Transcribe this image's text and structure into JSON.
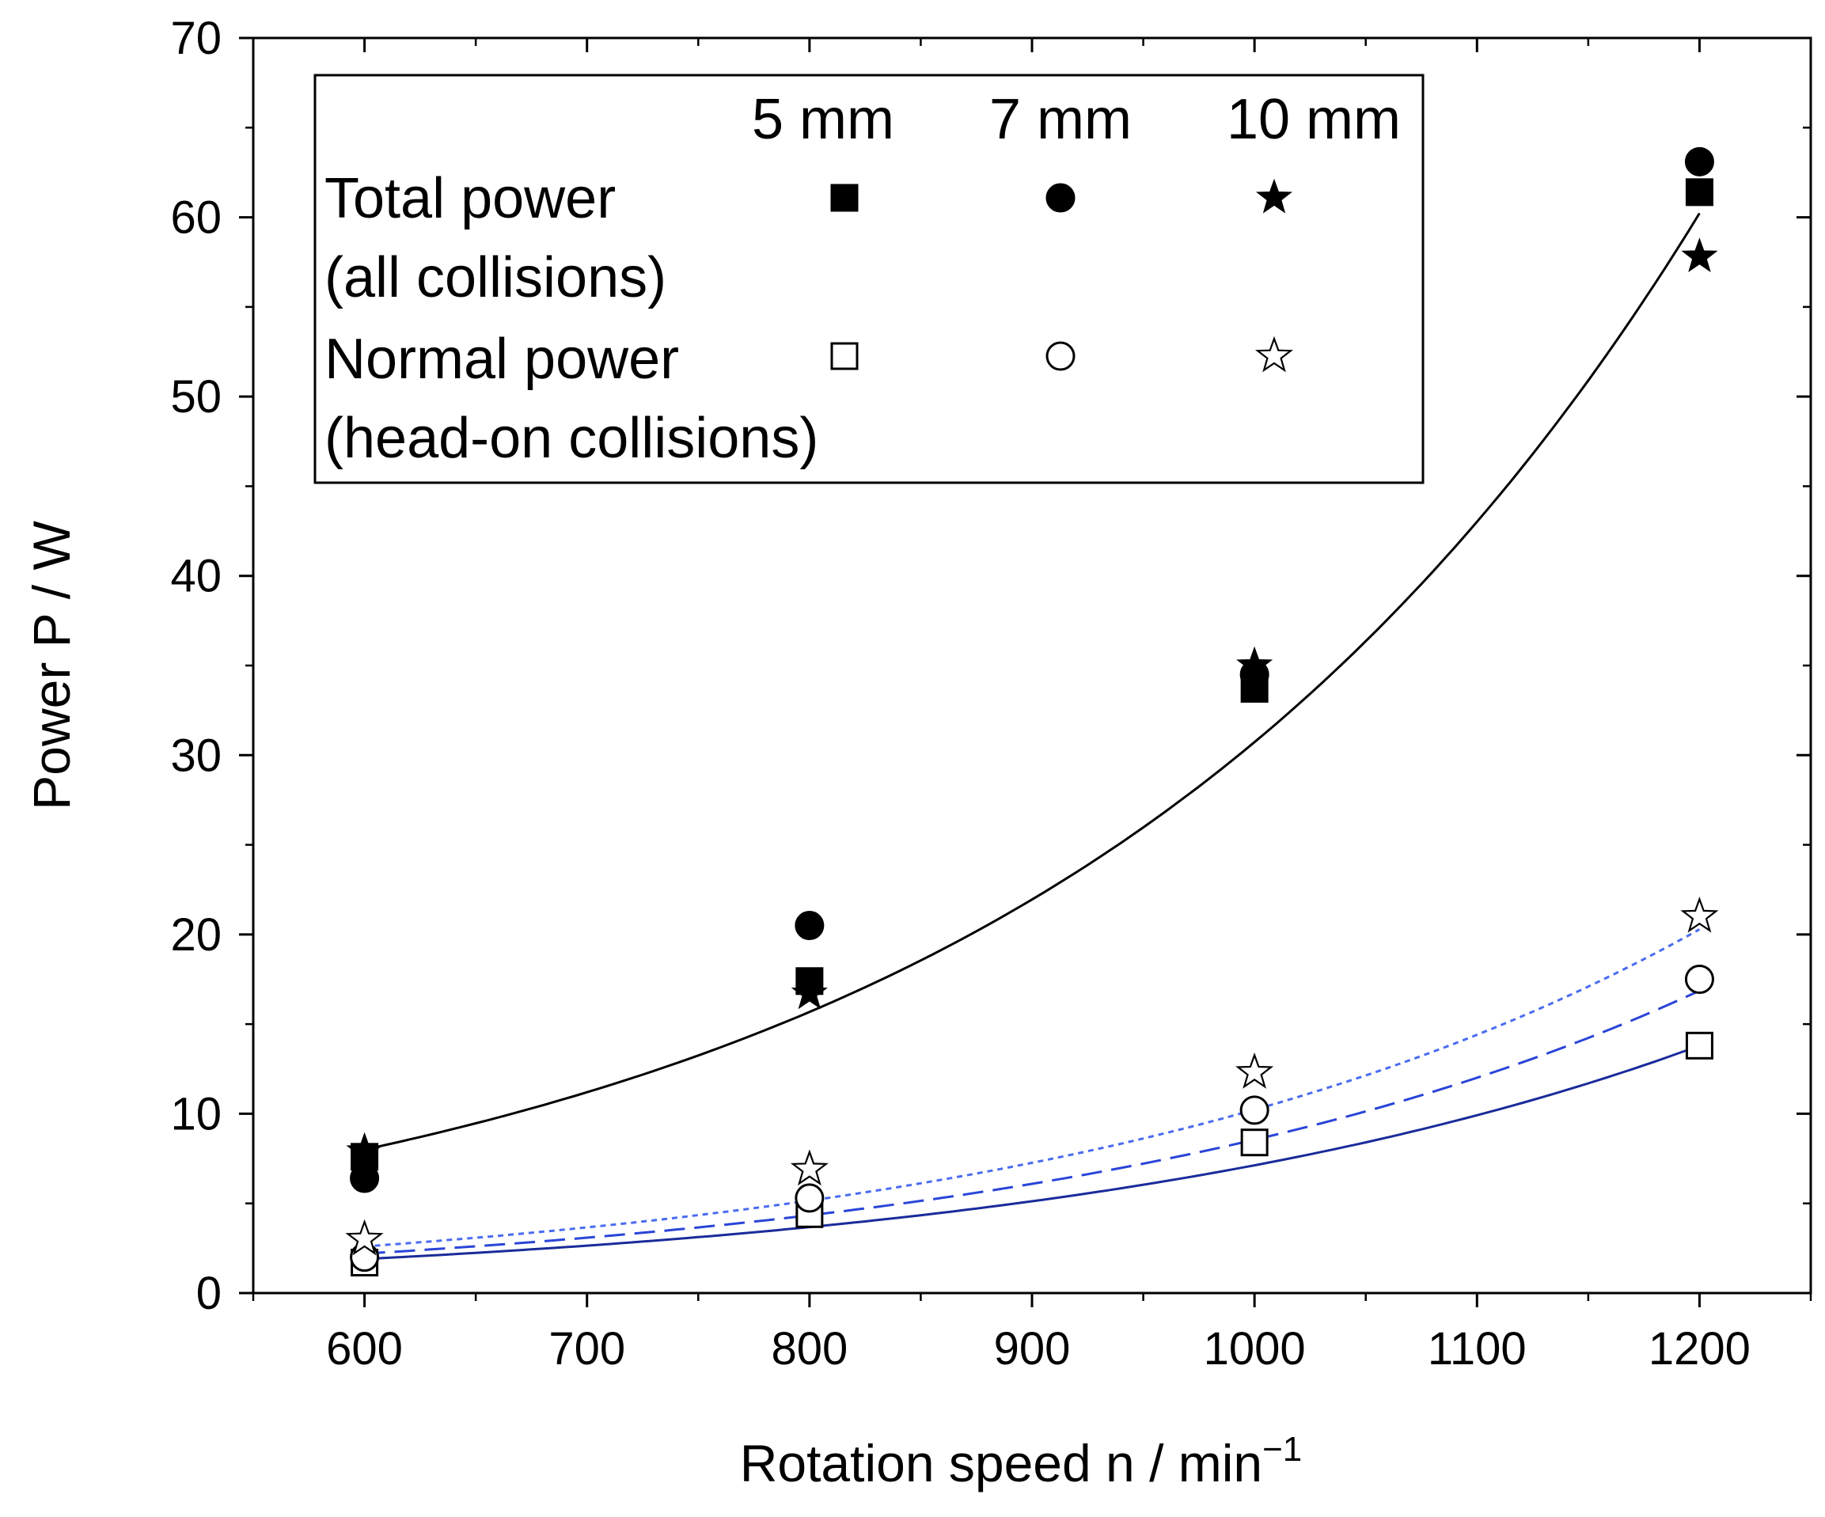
{
  "chart_data": {
    "type": "scatter",
    "title": "",
    "xlabel": "Rotation speed n / min",
    "xlabel_superscript": "−1",
    "ylabel": "Power P / W",
    "xlim": [
      550,
      1250
    ],
    "ylim": [
      0,
      70
    ],
    "x_ticks": [
      600,
      700,
      800,
      900,
      1000,
      1100,
      1200
    ],
    "y_ticks": [
      0,
      10,
      20,
      30,
      40,
      50,
      60,
      70
    ],
    "x_tick_labels": [
      "600",
      "700",
      "800",
      "900",
      "1000",
      "1100",
      "1200"
    ],
    "y_tick_labels": [
      "0",
      "10",
      "20",
      "30",
      "40",
      "50",
      "60",
      "70"
    ],
    "grid": false,
    "legend": {
      "position": "top-left",
      "columns": [
        "5 mm",
        "7 mm",
        "10 mm"
      ],
      "rows": [
        {
          "line1": "Total power",
          "line2": "(all collisions)",
          "markers": [
            "square-filled",
            "circle-filled",
            "star-filled"
          ]
        },
        {
          "line1": "Normal power",
          "line2": "(head-on collisions)",
          "markers": [
            "square-open",
            "circle-open",
            "star-open"
          ]
        }
      ]
    },
    "series": [
      {
        "name": "Total power 5 mm",
        "marker": "square-filled",
        "x": [
          600,
          800,
          1000,
          1200
        ],
        "y": [
          7.6,
          17.4,
          33.7,
          61.4
        ]
      },
      {
        "name": "Total power 7 mm",
        "marker": "circle-filled",
        "x": [
          600,
          800,
          1000,
          1200
        ],
        "y": [
          6.4,
          20.5,
          34.5,
          63.1
        ]
      },
      {
        "name": "Total power 10 mm",
        "marker": "star-filled",
        "x": [
          600,
          800,
          1000,
          1200
        ],
        "y": [
          7.9,
          16.7,
          35.0,
          57.8
        ]
      },
      {
        "name": "Normal power 5 mm",
        "marker": "square-open",
        "x": [
          600,
          800,
          1000,
          1200
        ],
        "y": [
          1.7,
          4.4,
          8.4,
          13.8
        ]
      },
      {
        "name": "Normal power 7 mm",
        "marker": "circle-open",
        "x": [
          600,
          800,
          1000,
          1200
        ],
        "y": [
          2.0,
          5.3,
          10.2,
          17.5
        ]
      },
      {
        "name": "Normal power 10 mm",
        "marker": "star-open",
        "x": [
          600,
          800,
          1000,
          1200
        ],
        "y": [
          3.0,
          6.9,
          12.3,
          21.0
        ]
      }
    ],
    "fits": [
      {
        "name": "Total power fit",
        "style": "solid",
        "color": "#000000",
        "y_at_600": 8.0,
        "growth": 1.00337
      },
      {
        "name": "Normal power 5 mm fit",
        "style": "solid",
        "color": "#1a2b9a",
        "y_at_600": 1.9,
        "growth": 1.00331
      },
      {
        "name": "Normal power 7 mm fit",
        "style": "dashed",
        "color": "#2a45d8",
        "y_at_600": 2.2,
        "growth": 1.0034
      },
      {
        "name": "Normal power 10 mm fit",
        "style": "dotted",
        "color": "#4a6cf0",
        "y_at_600": 2.6,
        "growth": 1.00343
      }
    ]
  }
}
